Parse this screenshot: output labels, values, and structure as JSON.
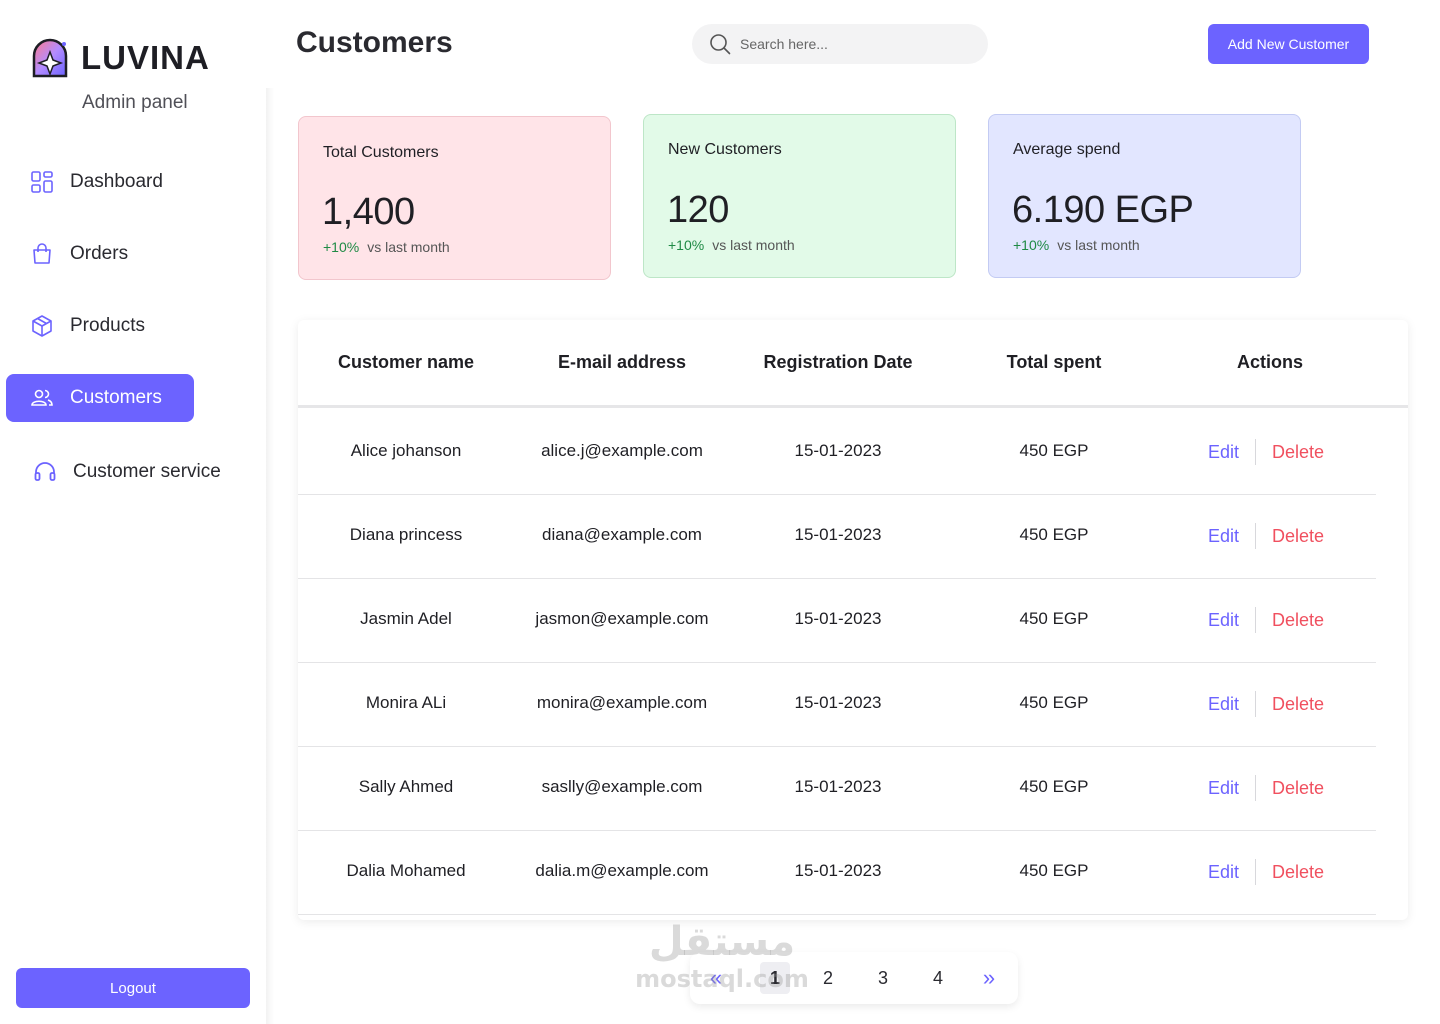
{
  "brand": {
    "name": "LUVINA",
    "subtitle": "Admin panel"
  },
  "sidebar": {
    "items": [
      {
        "label": "Dashboard",
        "icon": "grid-icon",
        "active": false
      },
      {
        "label": "Orders",
        "icon": "shopping-bag-icon",
        "active": false
      },
      {
        "label": "Products",
        "icon": "box-icon",
        "active": false
      },
      {
        "label": "Customers",
        "icon": "users-icon",
        "active": true
      },
      {
        "label": "Customer service",
        "icon": "headset-icon",
        "active": false
      }
    ],
    "logout_label": "Logout"
  },
  "header": {
    "title": "Customers",
    "search_placeholder": "Search here...",
    "add_button_label": "Add New Customer"
  },
  "stats": [
    {
      "label": "Total Customers",
      "value": "1,400",
      "change": "+10%",
      "change_note": "vs last month",
      "color": "#ffe4e8"
    },
    {
      "label": "New Customers",
      "value": "120",
      "change": "+10%",
      "change_note": "vs last month",
      "color": "#e2fae8"
    },
    {
      "label": "Average spend",
      "value": "6.190 EGP",
      "change": "+10%",
      "change_note": "vs last month",
      "color": "#e2e6ff"
    }
  ],
  "table": {
    "columns": [
      "Customer name",
      "E-mail address",
      "Registration Date",
      "Total spent",
      "Actions"
    ],
    "rows": [
      {
        "name": "Alice johanson",
        "email": "alice.j@example.com",
        "date": "15-01-2023",
        "spent": "450 EGP"
      },
      {
        "name": "Diana princess",
        "email": "diana@example.com",
        "date": "15-01-2023",
        "spent": "450 EGP"
      },
      {
        "name": "Jasmin Adel",
        "email": "jasmon@example.com",
        "date": "15-01-2023",
        "spent": "450 EGP"
      },
      {
        "name": "Monira ALi",
        "email": "monira@example.com",
        "date": "15-01-2023",
        "spent": "450 EGP"
      },
      {
        "name": "Sally Ahmed",
        "email": "saslly@example.com",
        "date": "15-01-2023",
        "spent": "450 EGP"
      },
      {
        "name": "Dalia Mohamed",
        "email": "dalia.m@example.com",
        "date": "15-01-2023",
        "spent": "450 EGP"
      }
    ],
    "edit_label": "Edit",
    "delete_label": "Delete"
  },
  "pagination": {
    "prev_symbol": "«",
    "next_symbol": "»",
    "pages": [
      "1",
      "2",
      "3",
      "4"
    ],
    "current": "1"
  },
  "watermark": {
    "arabic": "مستقل",
    "latin": "mostaql.com"
  },
  "colors": {
    "accent": "#6c63ff",
    "delete": "#f0505f",
    "positive": "#1f8a45"
  }
}
